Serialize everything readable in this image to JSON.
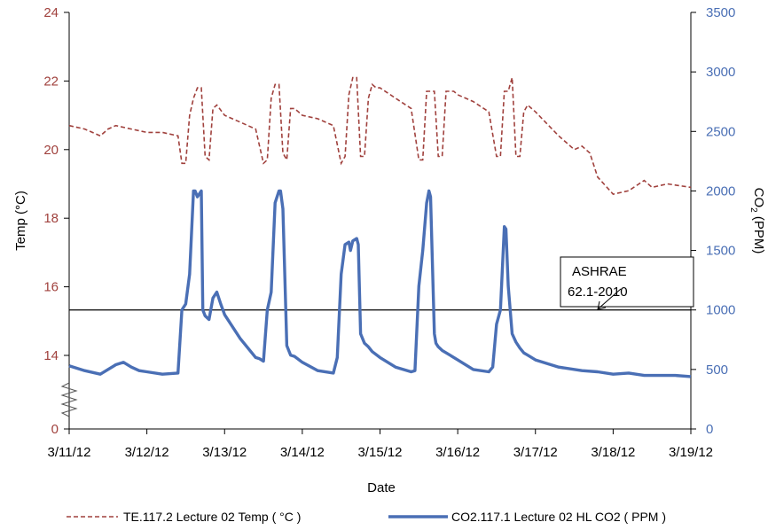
{
  "chart_data": {
    "type": "line",
    "xlabel": "Date",
    "ylabel_left": "Temp (°C)",
    "ylabel_right_main": "CO",
    "ylabel_right_sub": "2",
    "ylabel_right_unit": " (PPM)",
    "x_tick_labels": [
      "3/11/12",
      "3/12/12",
      "3/13/12",
      "3/14/12",
      "3/15/12",
      "3/16/12",
      "3/17/12",
      "3/18/12",
      "3/19/12"
    ],
    "x_range_days": [
      0,
      8
    ],
    "left_axis": {
      "ticks": [
        "0",
        "14",
        "16",
        "18",
        "20",
        "22",
        "24"
      ],
      "axis_break_between": [
        "0",
        "14"
      ]
    },
    "right_axis": {
      "ylim": [
        0,
        3500
      ],
      "ticks": [
        "0",
        "500",
        "1000",
        "1500",
        "2000",
        "2500",
        "3000",
        "3500"
      ]
    },
    "series": [
      {
        "name": "TE.117.2 Lecture 02 Temp ( °C )",
        "axis": "left",
        "style": "dashed",
        "color": "#a0413d",
        "x": [
          0,
          0.2,
          0.4,
          0.5,
          0.6,
          0.8,
          1.0,
          1.2,
          1.4,
          1.45,
          1.5,
          1.55,
          1.6,
          1.65,
          1.7,
          1.75,
          1.8,
          1.85,
          1.9,
          2.0,
          2.2,
          2.4,
          2.5,
          2.55,
          2.6,
          2.65,
          2.7,
          2.75,
          2.8,
          2.85,
          2.9,
          2.95,
          3.0,
          3.2,
          3.4,
          3.5,
          3.55,
          3.6,
          3.65,
          3.7,
          3.75,
          3.8,
          3.85,
          3.9,
          3.95,
          4.0,
          4.2,
          4.4,
          4.5,
          4.55,
          4.6,
          4.65,
          4.7,
          4.75,
          4.8,
          4.85,
          4.9,
          4.95,
          5.0,
          5.2,
          5.4,
          5.5,
          5.55,
          5.6,
          5.65,
          5.7,
          5.75,
          5.8,
          5.85,
          5.9,
          6.0,
          6.3,
          6.5,
          6.6,
          6.7,
          6.8,
          7.0,
          7.2,
          7.4,
          7.5,
          7.7,
          8.0
        ],
        "y": [
          20.7,
          20.6,
          20.4,
          20.6,
          20.7,
          20.6,
          20.5,
          20.5,
          20.4,
          19.6,
          19.6,
          21.0,
          21.5,
          21.8,
          21.8,
          19.8,
          19.7,
          21.2,
          21.3,
          21.0,
          20.8,
          20.6,
          19.6,
          19.7,
          21.5,
          21.9,
          21.9,
          19.9,
          19.7,
          21.2,
          21.2,
          21.1,
          21.0,
          20.9,
          20.7,
          19.6,
          19.8,
          21.6,
          22.1,
          22.1,
          19.8,
          19.8,
          21.5,
          21.9,
          21.8,
          21.8,
          21.5,
          21.2,
          19.7,
          19.7,
          21.7,
          21.7,
          21.7,
          19.8,
          19.8,
          21.7,
          21.7,
          21.7,
          21.6,
          21.4,
          21.1,
          19.8,
          19.8,
          21.7,
          21.7,
          22.1,
          19.8,
          19.8,
          21.1,
          21.3,
          21.1,
          20.4,
          20.0,
          20.1,
          19.9,
          19.2,
          18.7,
          18.8,
          19.1,
          18.9,
          19.0,
          18.9
        ]
      },
      {
        "name": "CO2.117.1 Lecture 02 HL CO2 ( PPM )",
        "axis": "right",
        "style": "solid",
        "color": "#4a6fb5",
        "x": [
          0,
          0.2,
          0.4,
          0.6,
          0.7,
          0.8,
          0.9,
          1.0,
          1.2,
          1.4,
          1.45,
          1.5,
          1.55,
          1.6,
          1.62,
          1.65,
          1.7,
          1.72,
          1.75,
          1.8,
          1.85,
          1.9,
          1.95,
          2.0,
          2.2,
          2.4,
          2.45,
          2.5,
          2.55,
          2.6,
          2.65,
          2.7,
          2.72,
          2.75,
          2.8,
          2.85,
          2.9,
          3.0,
          3.2,
          3.4,
          3.45,
          3.5,
          3.55,
          3.6,
          3.62,
          3.65,
          3.7,
          3.72,
          3.75,
          3.8,
          3.85,
          3.9,
          4.0,
          4.2,
          4.4,
          4.45,
          4.5,
          4.55,
          4.6,
          4.63,
          4.65,
          4.7,
          4.72,
          4.75,
          4.8,
          4.85,
          4.9,
          5.0,
          5.2,
          5.4,
          5.45,
          5.5,
          5.55,
          5.6,
          5.62,
          5.65,
          5.7,
          5.75,
          5.8,
          5.85,
          5.9,
          6.0,
          6.3,
          6.6,
          6.8,
          7.0,
          7.2,
          7.4,
          7.6,
          7.8,
          8.0
        ],
        "y": [
          530,
          490,
          460,
          540,
          560,
          520,
          490,
          480,
          460,
          470,
          1000,
          1050,
          1300,
          2000,
          2000,
          1950,
          2000,
          1000,
          950,
          920,
          1100,
          1150,
          1050,
          960,
          760,
          600,
          590,
          570,
          1000,
          1150,
          1900,
          2000,
          2000,
          1850,
          700,
          620,
          610,
          560,
          490,
          470,
          600,
          1300,
          1550,
          1570,
          1500,
          1580,
          1600,
          1550,
          800,
          720,
          690,
          650,
          600,
          520,
          480,
          490,
          1200,
          1500,
          1900,
          2000,
          1950,
          800,
          720,
          690,
          660,
          640,
          620,
          580,
          500,
          480,
          520,
          880,
          1000,
          1700,
          1680,
          1200,
          800,
          730,
          680,
          640,
          620,
          580,
          520,
          490,
          480,
          460,
          470,
          450,
          450,
          450,
          440
        ]
      }
    ],
    "reference_line": {
      "value": 1000,
      "axis": "right"
    },
    "annotation": {
      "line1": "ASHRAE",
      "line2": "62.1-2010"
    },
    "grid": false,
    "legend_position": "bottom"
  }
}
